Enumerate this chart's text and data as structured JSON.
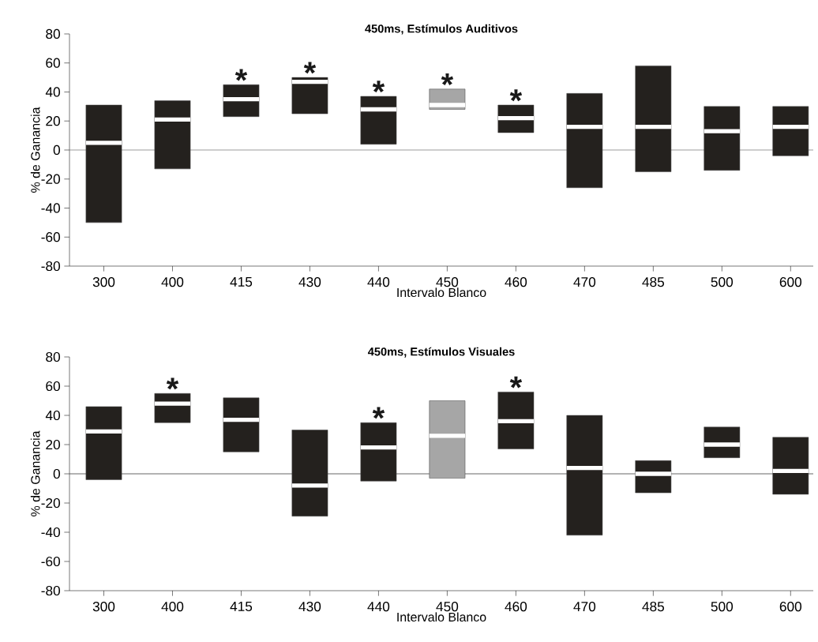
{
  "chart_data": [
    {
      "type": "box",
      "title": "450ms, Estímulos Auditivos",
      "xlabel": "Intervalo Blanco",
      "ylabel": "% de Ganancia",
      "categories": [
        "300",
        "400",
        "415",
        "430",
        "440",
        "450",
        "460",
        "470",
        "485",
        "500",
        "600"
      ],
      "boxes": [
        {
          "low": -50,
          "q1": -50,
          "median": 5,
          "q3": 31,
          "high": 31
        },
        {
          "low": -13,
          "q1": -13,
          "median": 21,
          "q3": 34,
          "high": 34
        },
        {
          "low": 23,
          "q1": 23,
          "median": 35,
          "q3": 45,
          "high": 45
        },
        {
          "low": 25,
          "q1": 25,
          "median": 47,
          "q3": 50,
          "high": 50
        },
        {
          "low": 4,
          "q1": 4,
          "median": 28,
          "q3": 37,
          "high": 37
        },
        {
          "low": 28,
          "q1": 28,
          "median": 31,
          "q3": 42,
          "high": 42
        },
        {
          "low": 12,
          "q1": 12,
          "median": 22,
          "q3": 31,
          "high": 31
        },
        {
          "low": -26,
          "q1": -26,
          "median": 16,
          "q3": 39,
          "high": 39
        },
        {
          "low": -15,
          "q1": -15,
          "median": 16,
          "q3": 58,
          "high": 58
        },
        {
          "low": -14,
          "q1": -14,
          "median": 13,
          "q3": 30,
          "high": 30
        },
        {
          "low": -4,
          "q1": -4,
          "median": 16,
          "q3": 30,
          "high": 30
        }
      ],
      "colors": [
        "#24211e",
        "#24211e",
        "#24211e",
        "#24211e",
        "#24211e",
        "#a6a6a6",
        "#24211e",
        "#24211e",
        "#24211e",
        "#24211e",
        "#24211e"
      ],
      "ylim": [
        -80,
        80
      ],
      "yticks": [
        -80,
        -60,
        -40,
        -20,
        0,
        20,
        40,
        60,
        80
      ],
      "grid": false,
      "ref_lines": [
        {
          "axis": "y",
          "value": 0,
          "color": "#808080"
        }
      ],
      "annotations": [
        {
          "text": "*",
          "x": "415",
          "y": 45
        },
        {
          "text": "*",
          "x": "430",
          "y": 50
        },
        {
          "text": "*",
          "x": "440",
          "y": 37
        },
        {
          "text": "*",
          "x": "450",
          "y": 42
        },
        {
          "text": "*",
          "x": "460",
          "y": 31
        }
      ]
    },
    {
      "type": "box",
      "title": "450ms, Estímulos Visuales",
      "xlabel": "Intervalo Blanco",
      "ylabel": "% de Ganancia",
      "categories": [
        "300",
        "400",
        "415",
        "430",
        "440",
        "450",
        "460",
        "470",
        "485",
        "500",
        "600"
      ],
      "boxes": [
        {
          "low": -4,
          "q1": -4,
          "median": 29,
          "q3": 46,
          "high": 46
        },
        {
          "low": 35,
          "q1": 35,
          "median": 48,
          "q3": 55,
          "high": 55
        },
        {
          "low": 15,
          "q1": 15,
          "median": 37,
          "q3": 52,
          "high": 52
        },
        {
          "low": -29,
          "q1": -29,
          "median": -8,
          "q3": 30,
          "high": 30
        },
        {
          "low": -5,
          "q1": -5,
          "median": 18,
          "q3": 35,
          "high": 35
        },
        {
          "low": -3,
          "q1": -3,
          "median": 26,
          "q3": 50,
          "high": 50
        },
        {
          "low": 17,
          "q1": 17,
          "median": 36,
          "q3": 56,
          "high": 56
        },
        {
          "low": -42,
          "q1": -42,
          "median": 4,
          "q3": 40,
          "high": 40
        },
        {
          "low": -13,
          "q1": -13,
          "median": 0,
          "q3": 9,
          "high": 9
        },
        {
          "low": 11,
          "q1": 11,
          "median": 20,
          "q3": 32,
          "high": 32
        },
        {
          "low": -14,
          "q1": -14,
          "median": 2,
          "q3": 25,
          "high": 25
        }
      ],
      "colors": [
        "#24211e",
        "#24211e",
        "#24211e",
        "#24211e",
        "#24211e",
        "#a6a6a6",
        "#24211e",
        "#24211e",
        "#24211e",
        "#24211e",
        "#24211e"
      ],
      "ylim": [
        -80,
        80
      ],
      "yticks": [
        -80,
        -60,
        -40,
        -20,
        0,
        20,
        40,
        60,
        80
      ],
      "grid": false,
      "ref_lines": [
        {
          "axis": "y",
          "value": 0,
          "color": "#404040"
        }
      ],
      "annotations": [
        {
          "text": "*",
          "x": "400",
          "y": 55
        },
        {
          "text": "*",
          "x": "440",
          "y": 35
        },
        {
          "text": "*",
          "x": "460",
          "y": 56
        }
      ]
    }
  ]
}
